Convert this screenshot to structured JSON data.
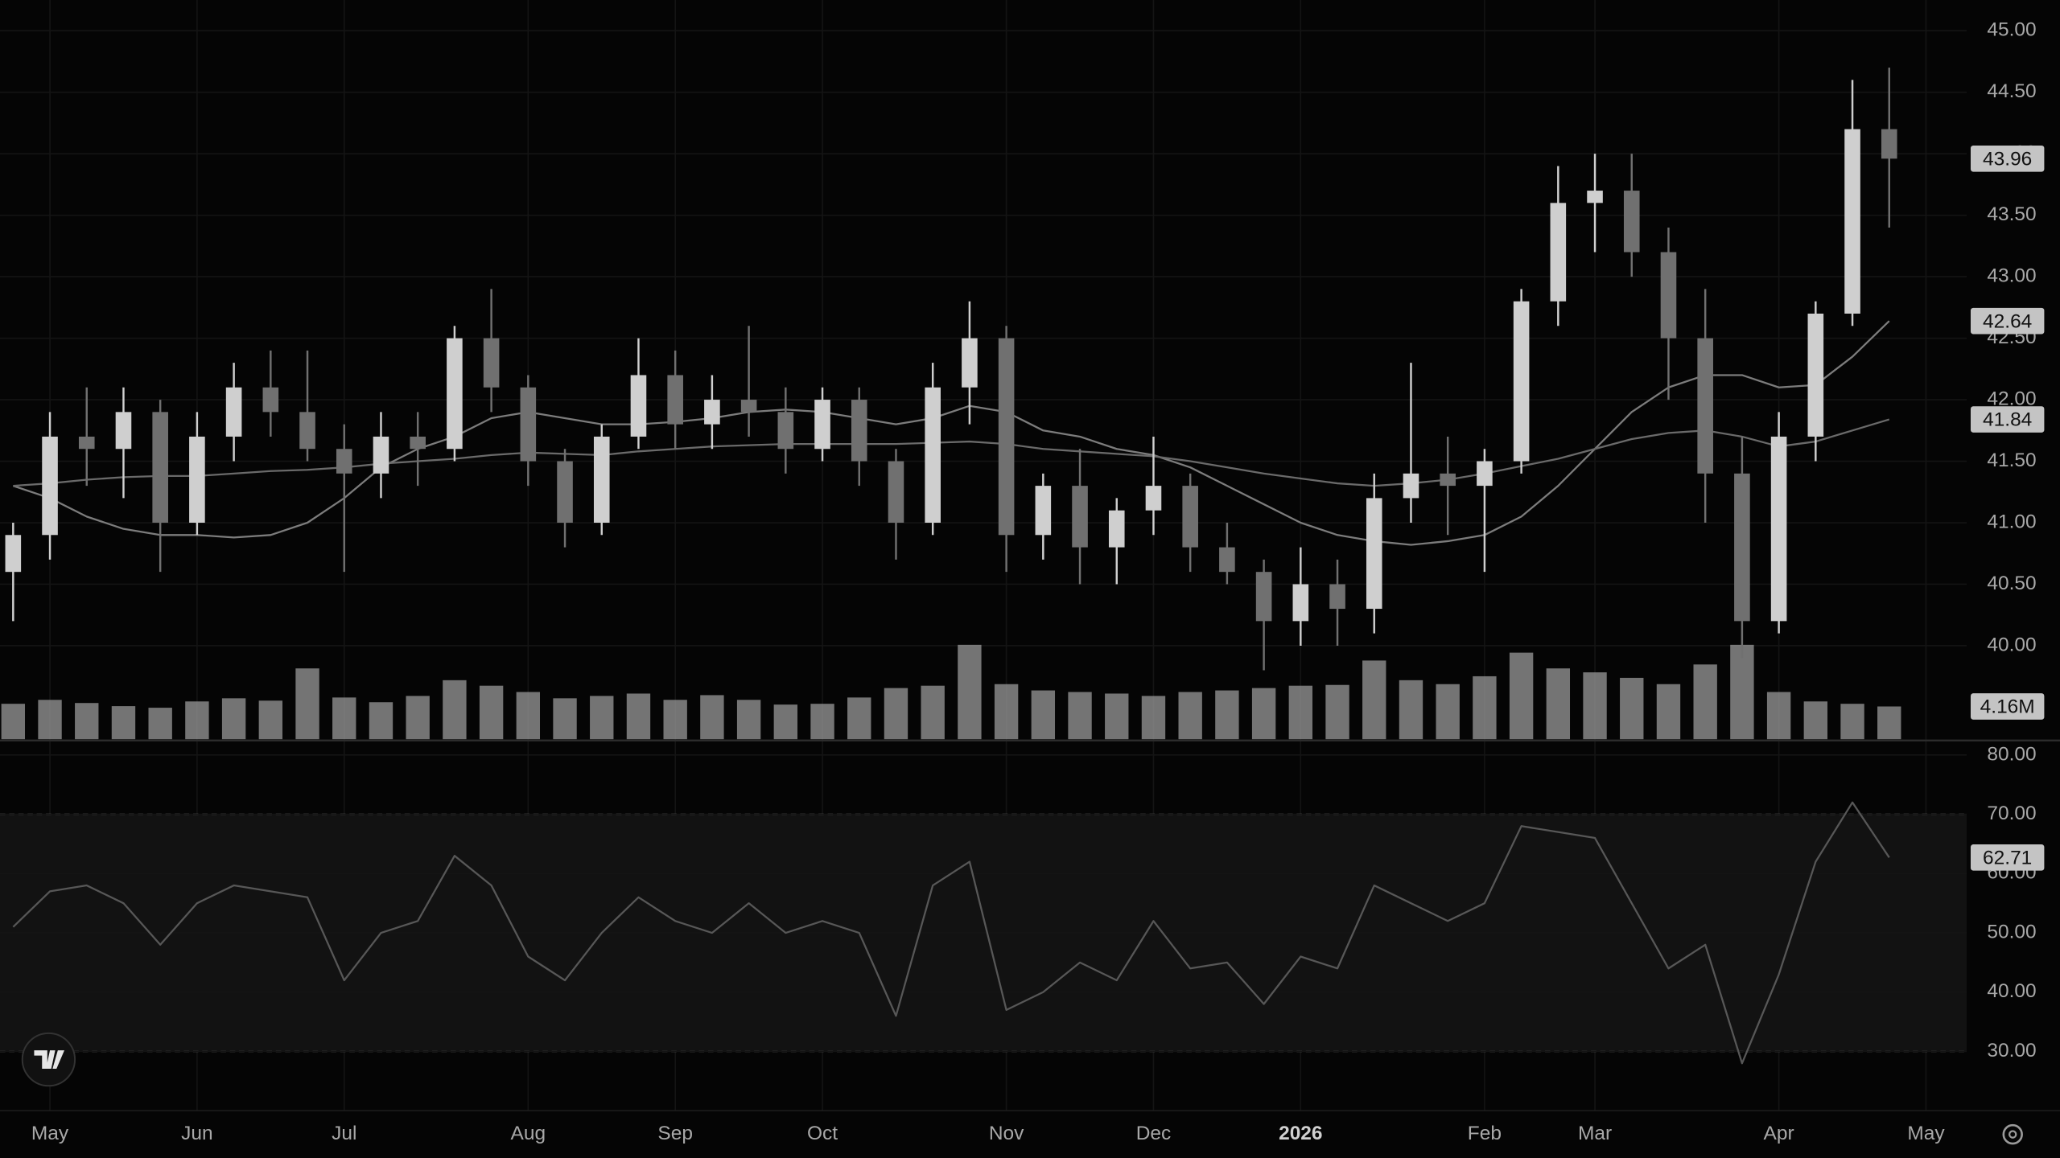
{
  "chart_data": {
    "type": "candlestick",
    "categories": [
      null,
      "May",
      null,
      null,
      null,
      "Jun",
      null,
      null,
      null,
      "Jul",
      null,
      null,
      null,
      null,
      "Aug",
      null,
      null,
      null,
      "Sep",
      null,
      null,
      null,
      "Oct",
      null,
      null,
      null,
      null,
      "Nov",
      null,
      null,
      null,
      "Dec",
      null,
      null,
      null,
      "2026",
      null,
      null,
      null,
      null,
      "Feb",
      null,
      null,
      "Mar",
      null,
      null,
      null,
      null,
      "Apr",
      null,
      null,
      null,
      "May",
      null
    ],
    "open": [
      40.6,
      40.9,
      41.7,
      41.6,
      41.9,
      41.0,
      41.7,
      42.1,
      41.9,
      41.6,
      41.4,
      41.7,
      41.6,
      42.5,
      42.1,
      41.5,
      41.0,
      41.7,
      42.2,
      41.8,
      42.0,
      41.9,
      41.6,
      42.0,
      41.5,
      41.0,
      42.1,
      42.5,
      40.9,
      41.3,
      40.8,
      41.1,
      41.3,
      40.8,
      40.6,
      40.2,
      40.5,
      40.3,
      41.2,
      41.4,
      41.3,
      41.5,
      42.8,
      43.6,
      43.7,
      43.2,
      42.5,
      41.4,
      40.2,
      41.7,
      42.7,
      44.2,
      null,
      null
    ],
    "high": [
      41.0,
      41.9,
      42.1,
      42.1,
      42.0,
      41.9,
      42.3,
      42.4,
      42.4,
      41.8,
      41.9,
      41.9,
      42.6,
      42.9,
      42.2,
      41.6,
      41.8,
      42.5,
      42.4,
      42.2,
      42.6,
      42.1,
      42.1,
      42.1,
      41.6,
      42.3,
      42.8,
      42.6,
      41.4,
      41.6,
      41.2,
      41.7,
      41.4,
      41.0,
      40.7,
      40.8,
      40.7,
      41.4,
      42.3,
      41.7,
      41.6,
      42.9,
      43.9,
      44.0,
      44.0,
      43.4,
      42.9,
      41.7,
      41.9,
      42.8,
      44.6,
      44.7,
      null,
      null
    ],
    "low": [
      40.2,
      40.7,
      41.3,
      41.2,
      40.6,
      40.9,
      41.5,
      41.7,
      41.5,
      40.6,
      41.2,
      41.3,
      41.5,
      41.9,
      41.3,
      40.8,
      40.9,
      41.6,
      41.6,
      41.6,
      41.7,
      41.4,
      41.5,
      41.3,
      40.7,
      40.9,
      41.8,
      40.6,
      40.7,
      40.5,
      40.5,
      40.9,
      40.6,
      40.5,
      39.8,
      40.0,
      40.0,
      40.1,
      41.0,
      40.9,
      40.6,
      41.4,
      42.6,
      43.2,
      43.0,
      42.0,
      41.0,
      39.9,
      40.1,
      41.5,
      42.6,
      43.4,
      null,
      null
    ],
    "close": [
      40.9,
      41.7,
      41.6,
      41.9,
      41.0,
      41.7,
      42.1,
      41.9,
      41.6,
      41.4,
      41.7,
      41.6,
      42.5,
      42.1,
      41.5,
      41.0,
      41.7,
      42.2,
      41.8,
      42.0,
      41.9,
      41.6,
      42.0,
      41.5,
      41.0,
      42.1,
      42.5,
      40.9,
      41.3,
      40.8,
      41.1,
      41.3,
      40.8,
      40.6,
      40.2,
      40.5,
      40.3,
      41.2,
      41.4,
      41.3,
      41.5,
      42.8,
      43.6,
      43.7,
      43.2,
      42.5,
      41.4,
      40.2,
      41.7,
      42.7,
      44.2,
      43.96,
      null,
      null
    ],
    "up_color": "#cfcfcf",
    "down_color": "#707070",
    "ylim": [
      39.24,
      45.25
    ],
    "yticks": [
      {
        "value": 40,
        "label": "40.00"
      },
      {
        "value": 40.5,
        "label": "40.50"
      },
      {
        "value": 41,
        "label": "41.00"
      },
      {
        "value": 41.5,
        "label": "41.50"
      },
      {
        "value": 42,
        "label": "42.00"
      },
      {
        "value": 42.5,
        "label": "42.50"
      },
      {
        "value": 43,
        "label": "43.00"
      },
      {
        "value": 43.5,
        "label": "43.50"
      },
      {
        "value": 44,
        "label": "44.00"
      },
      {
        "value": 44.5,
        "label": "44.50"
      },
      {
        "value": 45,
        "label": "45.00"
      }
    ],
    "grid": true,
    "moving_averages": [
      {
        "color": "#7c7c7c",
        "values": [
          41.3,
          41.2,
          41.05,
          40.95,
          40.9,
          40.9,
          40.88,
          40.9,
          41.0,
          41.2,
          41.45,
          41.6,
          41.7,
          41.85,
          41.9,
          41.85,
          41.8,
          41.8,
          41.82,
          41.85,
          41.9,
          41.92,
          41.9,
          41.85,
          41.8,
          41.85,
          41.95,
          41.9,
          41.75,
          41.7,
          41.6,
          41.55,
          41.45,
          41.3,
          41.15,
          41.0,
          40.9,
          40.85,
          40.82,
          40.85,
          40.9,
          41.05,
          41.3,
          41.6,
          41.9,
          42.1,
          42.2,
          42.2,
          42.1,
          42.12,
          42.35,
          42.64,
          null,
          null
        ]
      },
      {
        "color": "#6a6a6a",
        "values": [
          41.3,
          41.32,
          41.35,
          41.37,
          41.38,
          41.38,
          41.4,
          41.42,
          41.43,
          41.45,
          41.48,
          41.5,
          41.52,
          41.55,
          41.57,
          41.56,
          41.55,
          41.58,
          41.6,
          41.62,
          41.63,
          41.64,
          41.64,
          41.64,
          41.64,
          41.65,
          41.66,
          41.64,
          41.6,
          41.58,
          41.56,
          41.54,
          41.5,
          41.45,
          41.4,
          41.36,
          41.32,
          41.3,
          41.32,
          41.35,
          41.4,
          41.46,
          41.52,
          41.6,
          41.68,
          41.73,
          41.75,
          41.7,
          41.62,
          41.66,
          41.75,
          41.84,
          null,
          null
        ]
      }
    ],
    "volume": {
      "color": "#9a9a9a",
      "ylim": [
        0,
        94
      ],
      "values": [
        4.5,
        5.0,
        4.6,
        4.2,
        4.0,
        4.8,
        5.2,
        4.9,
        9.0,
        5.3,
        4.7,
        5.5,
        7.5,
        6.8,
        6.0,
        5.2,
        5.5,
        5.8,
        5.0,
        5.6,
        5.0,
        4.4,
        4.5,
        5.3,
        6.5,
        6.8,
        12.0,
        7.0,
        6.2,
        6.0,
        5.8,
        5.5,
        6.0,
        6.2,
        6.5,
        6.8,
        6.9,
        10.0,
        7.5,
        7.0,
        8.0,
        11.0,
        9.0,
        8.5,
        7.8,
        7.0,
        9.5,
        12.0,
        6.0,
        4.8,
        4.5,
        4.16,
        null,
        null
      ],
      "last_value_label": "4.16M"
    },
    "rsi": {
      "type": "line",
      "color": "#575757",
      "ylim": [
        20,
        82
      ],
      "yticks": [
        {
          "value": 30,
          "label": "30.00"
        },
        {
          "value": 40,
          "label": "40.00"
        },
        {
          "value": 50,
          "label": "50.00"
        },
        {
          "value": 60,
          "label": "60.00"
        },
        {
          "value": 70,
          "label": "70.00"
        },
        {
          "value": 80,
          "label": "80.00"
        }
      ],
      "band": [
        30,
        70
      ],
      "values": [
        51,
        57,
        58,
        55,
        48,
        55,
        58,
        57,
        56,
        42,
        50,
        52,
        63,
        58,
        46,
        42,
        50,
        56,
        52,
        50,
        55,
        50,
        52,
        50,
        36,
        58,
        62,
        37,
        40,
        45,
        42,
        52,
        44,
        45,
        38,
        46,
        44,
        58,
        55,
        52,
        55,
        68,
        67,
        66,
        55,
        44,
        48,
        28,
        43,
        62,
        72,
        62.71,
        null,
        null
      ]
    }
  }
}
